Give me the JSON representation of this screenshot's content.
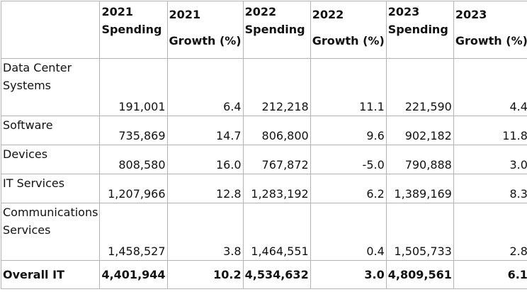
{
  "headers": [
    {
      "line1": "",
      "line2": "",
      "kind": "blank"
    },
    {
      "line1": "2021",
      "line2": "Spending",
      "kind": "spend"
    },
    {
      "line1": "2021",
      "line2": "Growth (%)",
      "kind": "growth"
    },
    {
      "line1": "2022",
      "line2": "Spending",
      "kind": "spend"
    },
    {
      "line1": "2022",
      "line2": "Growth (%)",
      "kind": "growth"
    },
    {
      "line1": "2023",
      "line2": "Spending",
      "kind": "spend"
    },
    {
      "line1": "2023",
      "line2": "Growth (%)",
      "kind": "growth"
    }
  ],
  "rows": [
    {
      "label": "Data Center Systems",
      "cells": [
        "191,001",
        "6.4",
        "212,218",
        "11.1",
        "221,590",
        "4.4"
      ]
    },
    {
      "label": "Software",
      "cells": [
        "735,869",
        "14.7",
        "806,800",
        "9.6",
        "902,182",
        "11.8"
      ]
    },
    {
      "label": "Devices",
      "cells": [
        "808,580",
        "16.0",
        "767,872",
        "-5.0",
        "790,888",
        "3.0"
      ]
    },
    {
      "label": "IT Services",
      "cells": [
        "1,207,966",
        "12.8",
        "1,283,192",
        "6.2",
        "1,389,169",
        "8.3"
      ]
    },
    {
      "label": "Communications Services",
      "cells": [
        "1,458,527",
        "3.8",
        "1,464,551",
        "0.4",
        "1,505,733",
        "2.8"
      ]
    }
  ],
  "total": {
    "label": "Overall IT",
    "cells": [
      "4,401,944",
      "10.2",
      "4,534,632",
      "3.0",
      "4,809,561",
      "6.1"
    ]
  }
}
